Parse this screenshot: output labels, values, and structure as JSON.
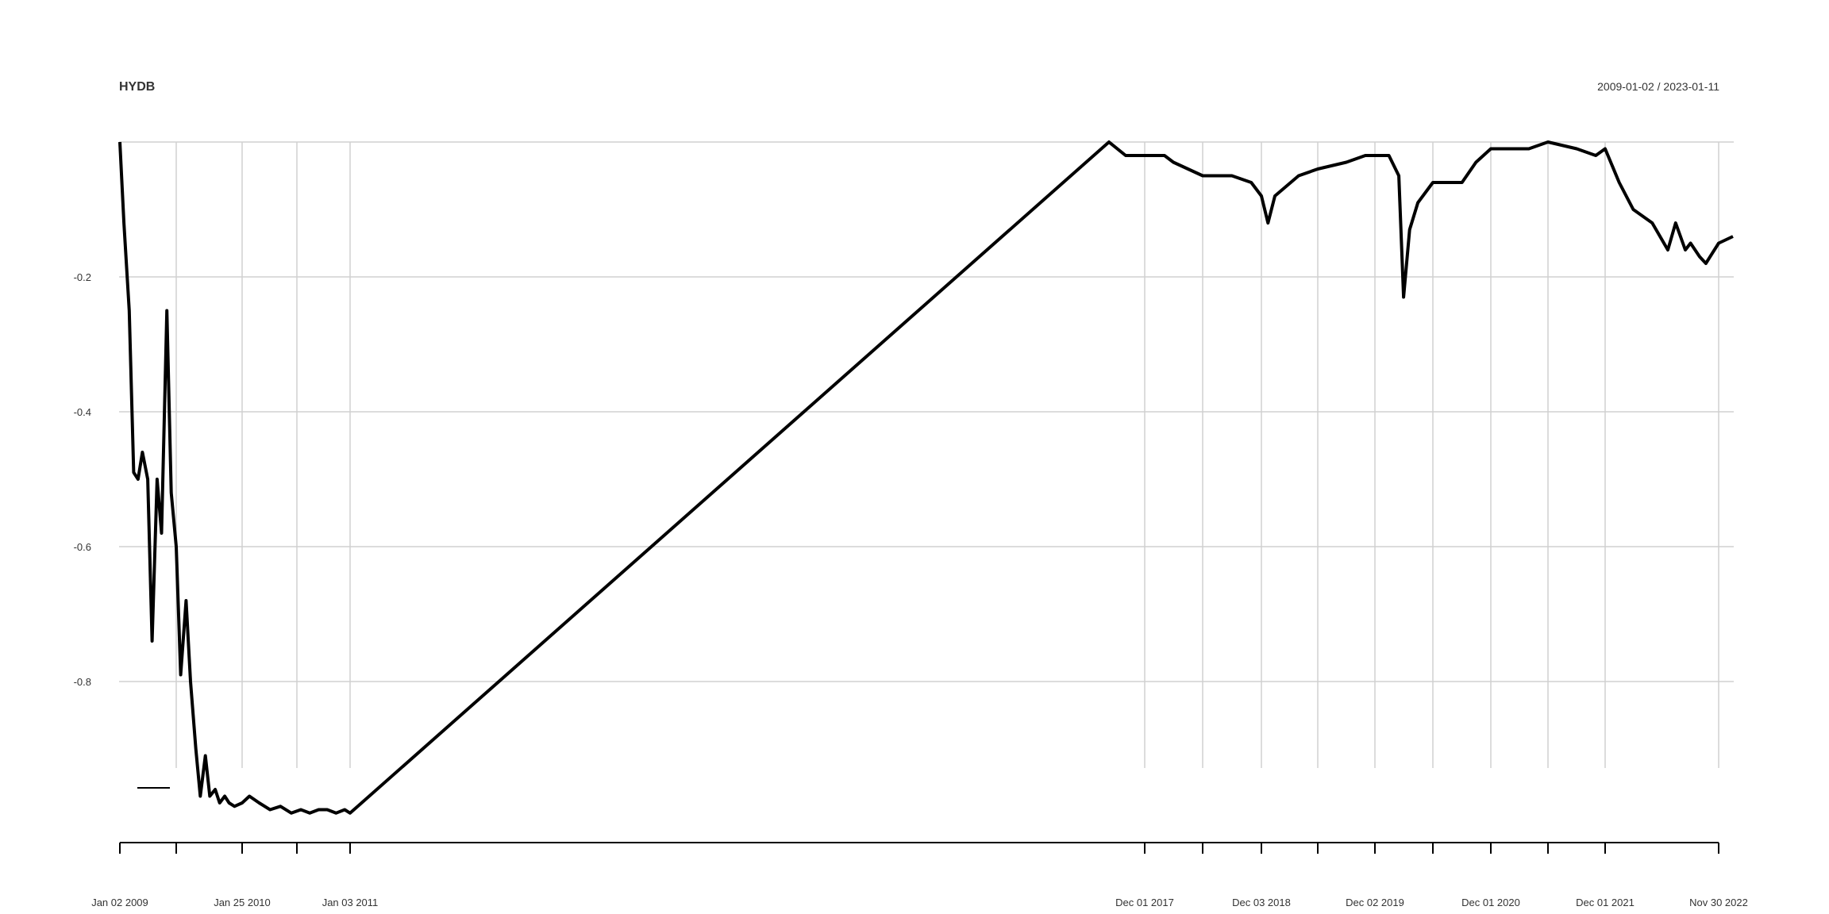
{
  "chart_data": {
    "type": "line",
    "title": "HYDB",
    "date_range_label": "2009-01-02 / 2023-01-11",
    "ylim": [
      -1.0,
      0.0
    ],
    "y_ticks": [
      -0.2,
      -0.4,
      -0.6,
      -0.8
    ],
    "y_tick_labels": [
      "-0.2",
      "-0.4",
      "-0.6",
      "-0.8"
    ],
    "x_ticks": [
      {
        "label": "Jan 02 2009",
        "date": "2009-01-02"
      },
      {
        "label": "Jan 25 2010",
        "date": "2010-01-25"
      },
      {
        "label": "Jan 03 2011",
        "date": "2011-01-03"
      },
      {
        "label": "Dec 01 2017",
        "date": "2017-12-01"
      },
      {
        "label": "Dec 03 2018",
        "date": "2018-12-03"
      },
      {
        "label": "Dec 02 2019",
        "date": "2019-12-02"
      },
      {
        "label": "Dec 01 2020",
        "date": "2020-12-01"
      },
      {
        "label": "Dec 01 2021",
        "date": "2021-12-01"
      },
      {
        "label": "Nov 30 2022",
        "date": "2022-11-30"
      }
    ],
    "grid": true,
    "series": [
      {
        "x": [
          "2009-01-02",
          "2009-01-15",
          "2009-02-01",
          "2009-02-15",
          "2009-03-01",
          "2009-03-15",
          "2009-04-01",
          "2009-04-15",
          "2009-05-01",
          "2009-05-15",
          "2009-06-01",
          "2009-06-15",
          "2009-07-01",
          "2009-07-15",
          "2009-08-01",
          "2009-08-15",
          "2009-09-01",
          "2009-09-15",
          "2009-10-01",
          "2009-10-15",
          "2009-11-01",
          "2009-11-15",
          "2009-12-01",
          "2009-12-15",
          "2010-01-01",
          "2010-01-25",
          "2010-02-15",
          "2010-03-15",
          "2010-04-15",
          "2010-05-15",
          "2010-06-15",
          "2010-07-15",
          "2010-08-15",
          "2010-09-15",
          "2010-10-15",
          "2010-11-15",
          "2010-12-15",
          "2011-01-03",
          "2017-11-01",
          "2017-11-15",
          "2017-12-01",
          "2018-02-01",
          "2018-03-01",
          "2018-06-01",
          "2018-09-01",
          "2018-11-01",
          "2018-12-03",
          "2018-12-24",
          "2019-01-15",
          "2019-04-01",
          "2019-06-01",
          "2019-09-01",
          "2019-11-01",
          "2019-12-02",
          "2020-01-15",
          "2020-02-15",
          "2020-03-01",
          "2020-03-20",
          "2020-04-15",
          "2020-06-01",
          "2020-09-01",
          "2020-10-15",
          "2020-12-01",
          "2021-02-01",
          "2021-04-01",
          "2021-06-01",
          "2021-09-01",
          "2021-11-01",
          "2021-12-01",
          "2022-01-15",
          "2022-03-01",
          "2022-05-01",
          "2022-06-20",
          "2022-07-15",
          "2022-08-15",
          "2022-09-01",
          "2022-09-30",
          "2022-10-20",
          "2022-11-30",
          "2023-01-11"
        ],
        "y": [
          0.0,
          -0.12,
          -0.25,
          -0.49,
          -0.5,
          -0.46,
          -0.5,
          -0.74,
          -0.5,
          -0.58,
          -0.25,
          -0.52,
          -0.6,
          -0.79,
          -0.68,
          -0.8,
          -0.9,
          -0.97,
          -0.91,
          -0.97,
          -0.96,
          -0.98,
          -0.97,
          -0.98,
          -0.985,
          -0.98,
          -0.97,
          -0.98,
          -0.99,
          -0.985,
          -0.995,
          -0.99,
          -0.995,
          -0.99,
          -0.99,
          -0.995,
          -0.99,
          -0.995,
          0.0,
          -0.02,
          -0.02,
          -0.02,
          -0.03,
          -0.05,
          -0.05,
          -0.06,
          -0.08,
          -0.12,
          -0.08,
          -0.05,
          -0.04,
          -0.03,
          -0.02,
          -0.02,
          -0.02,
          -0.05,
          -0.23,
          -0.13,
          -0.09,
          -0.06,
          -0.06,
          -0.03,
          -0.01,
          -0.01,
          -0.01,
          0.0,
          -0.01,
          -0.02,
          -0.01,
          -0.06,
          -0.1,
          -0.12,
          -0.16,
          -0.12,
          -0.16,
          -0.15,
          -0.17,
          -0.18,
          -0.15,
          -0.14
        ]
      }
    ]
  }
}
